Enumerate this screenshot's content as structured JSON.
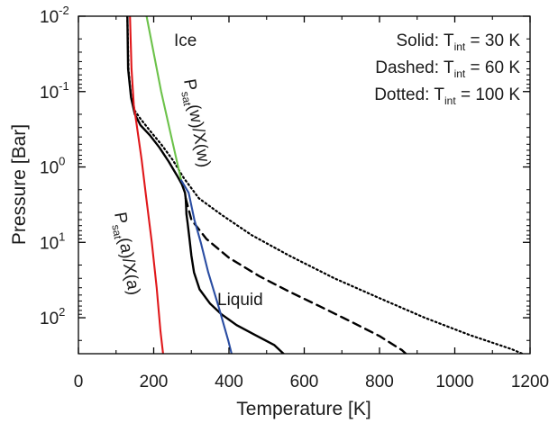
{
  "chart_data": {
    "type": "line",
    "xlabel": "Temperature [K]",
    "ylabel": "Pressure [Bar]",
    "xlim": [
      0,
      1200
    ],
    "ylim": [
      0.01,
      300
    ],
    "y_scale": "log",
    "y_inverted": true,
    "grid": false,
    "x_ticks": [
      {
        "value": 0,
        "label": "0"
      },
      {
        "value": 200,
        "label": "200"
      },
      {
        "value": 400,
        "label": "400"
      },
      {
        "value": 600,
        "label": "600"
      },
      {
        "value": 800,
        "label": "800"
      },
      {
        "value": 1000,
        "label": "1000"
      },
      {
        "value": 1200,
        "label": "1200"
      }
    ],
    "y_ticks": [
      {
        "value": 0.01,
        "base": "10",
        "exp": "-2"
      },
      {
        "value": 0.1,
        "base": "10",
        "exp": "-1"
      },
      {
        "value": 1,
        "base": "10",
        "exp": "0"
      },
      {
        "value": 10,
        "base": "10",
        "exp": "1"
      },
      {
        "value": 100,
        "base": "10",
        "exp": "2"
      }
    ],
    "legend": [
      {
        "prefix": "Solid: T",
        "sub": "int",
        "suffix": " = 30 K"
      },
      {
        "prefix": "Dashed: T",
        "sub": "int",
        "suffix": " = 60 K"
      },
      {
        "prefix": "Dotted: T",
        "sub": "int",
        "suffix": " = 100 K"
      }
    ],
    "annotations": {
      "ice": "Ice",
      "liquid": "Liquid",
      "psat_w": {
        "p": "P",
        "sub": "sat",
        "rest": "(w)/X(w)"
      },
      "psat_a": {
        "p": "P",
        "sub": "sat",
        "rest": "(a)/X(a)"
      }
    },
    "colors": {
      "profiles": "#000000",
      "ammonia": "#e0181b",
      "water_ice": "#6cc24a",
      "water_liquid": "#2a4da2"
    },
    "series": [
      {
        "style": "solid",
        "color": "#000000",
        "points": [
          [
            130,
            0.01
          ],
          [
            132,
            0.05
          ],
          [
            140,
            0.12
          ],
          [
            150,
            0.2
          ],
          [
            165,
            0.28
          ],
          [
            190,
            0.38
          ],
          [
            215,
            0.55
          ],
          [
            240,
            0.85
          ],
          [
            262,
            1.3
          ],
          [
            275,
            1.7
          ],
          [
            283,
            2.2
          ],
          [
            285,
            2.6
          ],
          [
            286,
            3.2
          ],
          [
            287,
            4.2
          ],
          [
            290,
            5.5
          ],
          [
            295,
            9
          ],
          [
            300,
            15
          ],
          [
            307,
            25
          ],
          [
            322,
            42
          ],
          [
            350,
            65
          ],
          [
            380,
            90
          ],
          [
            420,
            125
          ],
          [
            470,
            170
          ],
          [
            520,
            230
          ],
          [
            545,
            300
          ]
        ]
      },
      {
        "style": "dashed",
        "color": "#000000",
        "points": [
          [
            285,
            2.6
          ],
          [
            300,
            5
          ],
          [
            340,
            9
          ],
          [
            400,
            16
          ],
          [
            480,
            28
          ],
          [
            560,
            45
          ],
          [
            640,
            70
          ],
          [
            720,
            110
          ],
          [
            800,
            175
          ],
          [
            860,
            270
          ],
          [
            870,
            300
          ]
        ]
      },
      {
        "style": "dotted",
        "color": "#000000",
        "points": [
          [
            130,
            0.01
          ],
          [
            133,
            0.05
          ],
          [
            140,
            0.12
          ],
          [
            150,
            0.18
          ],
          [
            165,
            0.23
          ],
          [
            190,
            0.33
          ],
          [
            220,
            0.5
          ],
          [
            250,
            0.8
          ],
          [
            280,
            1.4
          ],
          [
            320,
            2.6
          ],
          [
            380,
            4.3
          ],
          [
            460,
            8
          ],
          [
            560,
            15
          ],
          [
            680,
            30
          ],
          [
            800,
            55
          ],
          [
            920,
            100
          ],
          [
            1040,
            170
          ],
          [
            1150,
            260
          ],
          [
            1180,
            300
          ]
        ]
      },
      {
        "style": "solid",
        "color": "#e0181b",
        "points": [
          [
            137,
            0.01
          ],
          [
            141,
            0.05
          ],
          [
            147,
            0.15
          ],
          [
            155,
            0.28
          ],
          [
            168,
            0.8
          ],
          [
            180,
            2.5
          ],
          [
            195,
            10
          ],
          [
            208,
            40
          ],
          [
            218,
            150
          ],
          [
            225,
            300
          ]
        ]
      },
      {
        "style": "solid",
        "color": "#6cc24a",
        "points": [
          [
            181,
            0.01
          ],
          [
            220,
            0.1
          ],
          [
            247,
            0.4
          ],
          [
            273,
            1.5
          ]
        ]
      },
      {
        "style": "solid",
        "color": "#2a4da2",
        "points": [
          [
            273,
            1.5
          ],
          [
            293,
            2.2
          ],
          [
            308,
            5
          ],
          [
            325,
            10
          ],
          [
            345,
            25
          ],
          [
            372,
            70
          ],
          [
            398,
            200
          ],
          [
            407,
            300
          ]
        ]
      }
    ]
  }
}
